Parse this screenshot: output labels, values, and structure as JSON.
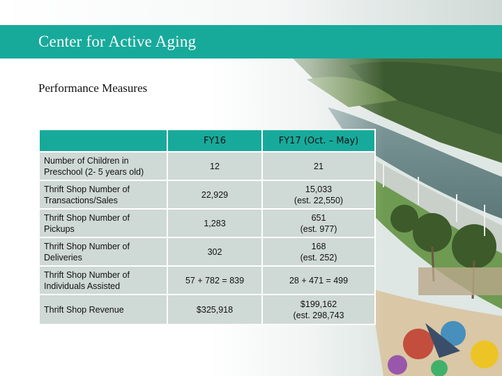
{
  "header": {
    "title": "Center for Active Aging"
  },
  "section": {
    "title": "Performance Measures"
  },
  "table": {
    "columns": [
      "",
      "FY16",
      "FY17 (Oct. – May)"
    ],
    "rows": [
      {
        "label": "Number of Children in Preschool (2- 5 years old)",
        "fy16": "12",
        "fy17": "21",
        "fy17_note": ""
      },
      {
        "label": "Thrift Shop Number of Transactions/Sales",
        "fy16": "22,929",
        "fy17": "15,033",
        "fy17_note": "(est. 22,550)"
      },
      {
        "label": "Thrift Shop Number of Pickups",
        "fy16": "1,283",
        "fy17": "651",
        "fy17_note": "(est. 977)"
      },
      {
        "label": "Thrift Shop Number of Deliveries",
        "fy16": "302",
        "fy17": "168",
        "fy17_note": "(est. 252)"
      },
      {
        "label": "Thrift Shop Number of Individuals Assisted",
        "fy16": "57 + 782 = 839",
        "fy17": "28 + 471 = 499",
        "fy17_note": ""
      },
      {
        "label": "Thrift Shop Revenue",
        "fy16": "$325,918",
        "fy17": "$199,162",
        "fy17_note": "(est. 298,743"
      }
    ]
  },
  "colors": {
    "accent": "#17aa9b",
    "cell": "#cfd9d6"
  },
  "background_image": "waterfront-park-photo"
}
